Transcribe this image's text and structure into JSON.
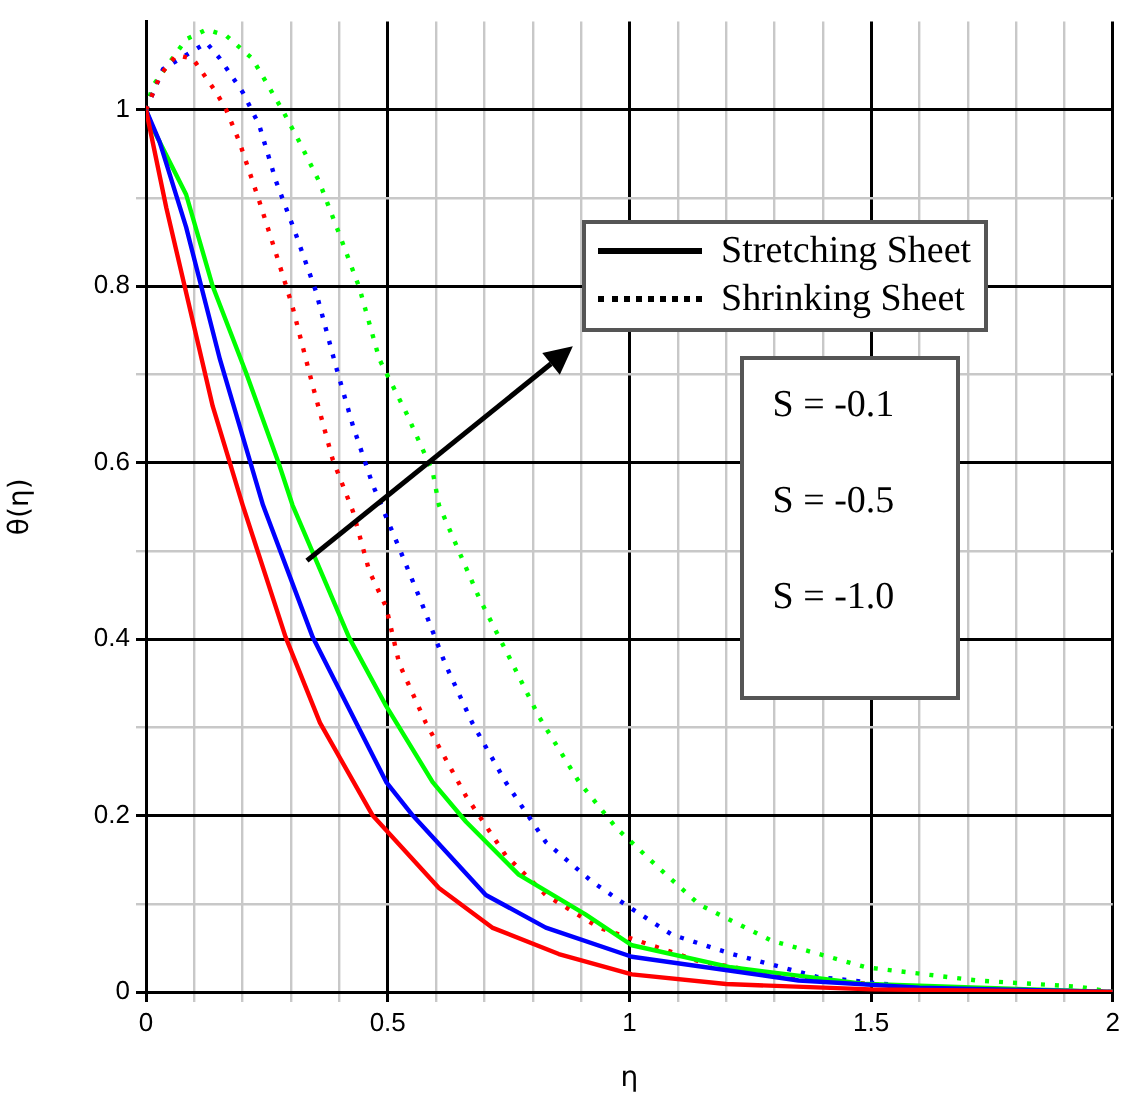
{
  "chart_data": {
    "type": "line",
    "xlabel": "η",
    "ylabel": "θ(η)",
    "xlim": [
      0,
      2
    ],
    "ylim": [
      0,
      1.1
    ],
    "xticks": [
      0,
      {
        "value": 0.1,
        "label": null
      },
      {
        "value": 0.2,
        "label": null
      },
      {
        "value": 0.3,
        "label": null
      },
      {
        "value": 0.4,
        "label": null
      },
      0.5,
      {
        "value": 0.6,
        "label": null
      },
      {
        "value": 0.7,
        "label": null
      },
      {
        "value": 0.8,
        "label": null
      },
      {
        "value": 0.9,
        "label": null
      },
      1,
      {
        "value": 1.1,
        "label": null
      },
      {
        "value": 1.2,
        "label": null
      },
      {
        "value": 1.3,
        "label": null
      },
      {
        "value": 1.4,
        "label": null
      },
      1.5,
      {
        "value": 1.6,
        "label": null
      },
      {
        "value": 1.7,
        "label": null
      },
      {
        "value": 1.8,
        "label": null
      },
      {
        "value": 1.9,
        "label": null
      },
      2
    ],
    "yticks": [
      0,
      {
        "value": 0.1,
        "label": null
      },
      0.2,
      {
        "value": 0.3,
        "label": null
      },
      0.4,
      {
        "value": 0.5,
        "label": null
      },
      0.6,
      {
        "value": 0.7,
        "label": null
      },
      0.8,
      {
        "value": 0.9,
        "label": null
      },
      1
    ],
    "grid": true,
    "annotations": [
      "Stretching Sheet",
      "Shrinking Sheet",
      "S = -0.1",
      "S = -0.5",
      "S = -1.0"
    ],
    "series": [
      {
        "color": "#ff0000",
        "line_style": "solid",
        "x": [
          0,
          0.042,
          0.138,
          0.2,
          0.289,
          0.36,
          0.469,
          0.606,
          0.716,
          0.854,
          1.005,
          1.2,
          1.5,
          2
        ],
        "values": [
          1,
          0.889,
          0.664,
          0.552,
          0.402,
          0.305,
          0.2,
          0.118,
          0.073,
          0.043,
          0.02,
          0.009,
          0.003,
          0
        ]
      },
      {
        "color": "#0000ff",
        "line_style": "solid",
        "x": [
          0,
          0.028,
          0.083,
          0.153,
          0.242,
          0.345,
          0.497,
          0.552,
          0.703,
          0.827,
          1.005,
          1.35,
          1.6,
          2
        ],
        "values": [
          1,
          0.964,
          0.867,
          0.717,
          0.552,
          0.402,
          0.238,
          0.2,
          0.11,
          0.073,
          0.04,
          0.013,
          0.005,
          0
        ]
      },
      {
        "color": "#00ff00",
        "line_style": "solid",
        "x": [
          0,
          0.014,
          0.083,
          0.138,
          0.207,
          0.276,
          0.303,
          0.42,
          0.497,
          0.593,
          0.662,
          0.771,
          0.909,
          1.005,
          1.21,
          1.49,
          2
        ],
        "values": [
          1,
          0.979,
          0.904,
          0.8,
          0.702,
          0.597,
          0.552,
          0.402,
          0.324,
          0.238,
          0.193,
          0.133,
          0.088,
          0.053,
          0.028,
          0.009,
          0
        ]
      },
      {
        "color": "#ff0000",
        "line_style": "dotted",
        "x": [
          0,
          0.03,
          0.063,
          0.097,
          0.145,
          0.166,
          0.193,
          0.234,
          0.269,
          0.303,
          0.345,
          0.386,
          0.428,
          0.462,
          0.497,
          0.524,
          0.579,
          0.662,
          0.744,
          0.827,
          0.937,
          1.143,
          1.35,
          1.6,
          2
        ],
        "values": [
          1,
          1.04,
          1.062,
          1.058,
          1.02,
          1.0,
          0.964,
          0.897,
          0.837,
          0.777,
          0.687,
          0.604,
          0.545,
          0.477,
          0.436,
          0.372,
          0.305,
          0.222,
          0.155,
          0.11,
          0.073,
          0.035,
          0.015,
          0.005,
          0
        ]
      },
      {
        "color": "#0000ff",
        "line_style": "dotted",
        "x": [
          0,
          0.035,
          0.125,
          0.153,
          0.2,
          0.234,
          0.269,
          0.31,
          0.351,
          0.393,
          0.428,
          0.469,
          0.524,
          0.571,
          0.619,
          0.675,
          0.744,
          0.827,
          0.923,
          0.992,
          1.088,
          1.213,
          1.39,
          1.6,
          2
        ],
        "values": [
          1,
          1.046,
          1.076,
          1.058,
          1.02,
          0.983,
          0.919,
          0.859,
          0.795,
          0.709,
          0.642,
          0.575,
          0.503,
          0.44,
          0.372,
          0.305,
          0.238,
          0.17,
          0.125,
          0.099,
          0.065,
          0.043,
          0.017,
          0.005,
          0
        ]
      },
      {
        "color": "#00ff00",
        "line_style": "dotted",
        "x": [
          0,
          0.014,
          0.083,
          0.125,
          0.166,
          0.22,
          0.282,
          0.317,
          0.358,
          0.4,
          0.441,
          0.483,
          0.538,
          0.593,
          0.606,
          0.689,
          0.751,
          0.813,
          0.896,
          0.973,
          1.062,
          1.145,
          1.295,
          1.49,
          1.72,
          1.93,
          2
        ],
        "values": [
          1,
          1.027,
          1.08,
          1.091,
          1.084,
          1.058,
          1.0,
          0.964,
          0.919,
          0.859,
          0.799,
          0.717,
          0.657,
          0.59,
          0.552,
          0.447,
          0.38,
          0.312,
          0.238,
          0.186,
          0.14,
          0.099,
          0.058,
          0.028,
          0.013,
          0.006,
          0
        ]
      }
    ]
  }
}
